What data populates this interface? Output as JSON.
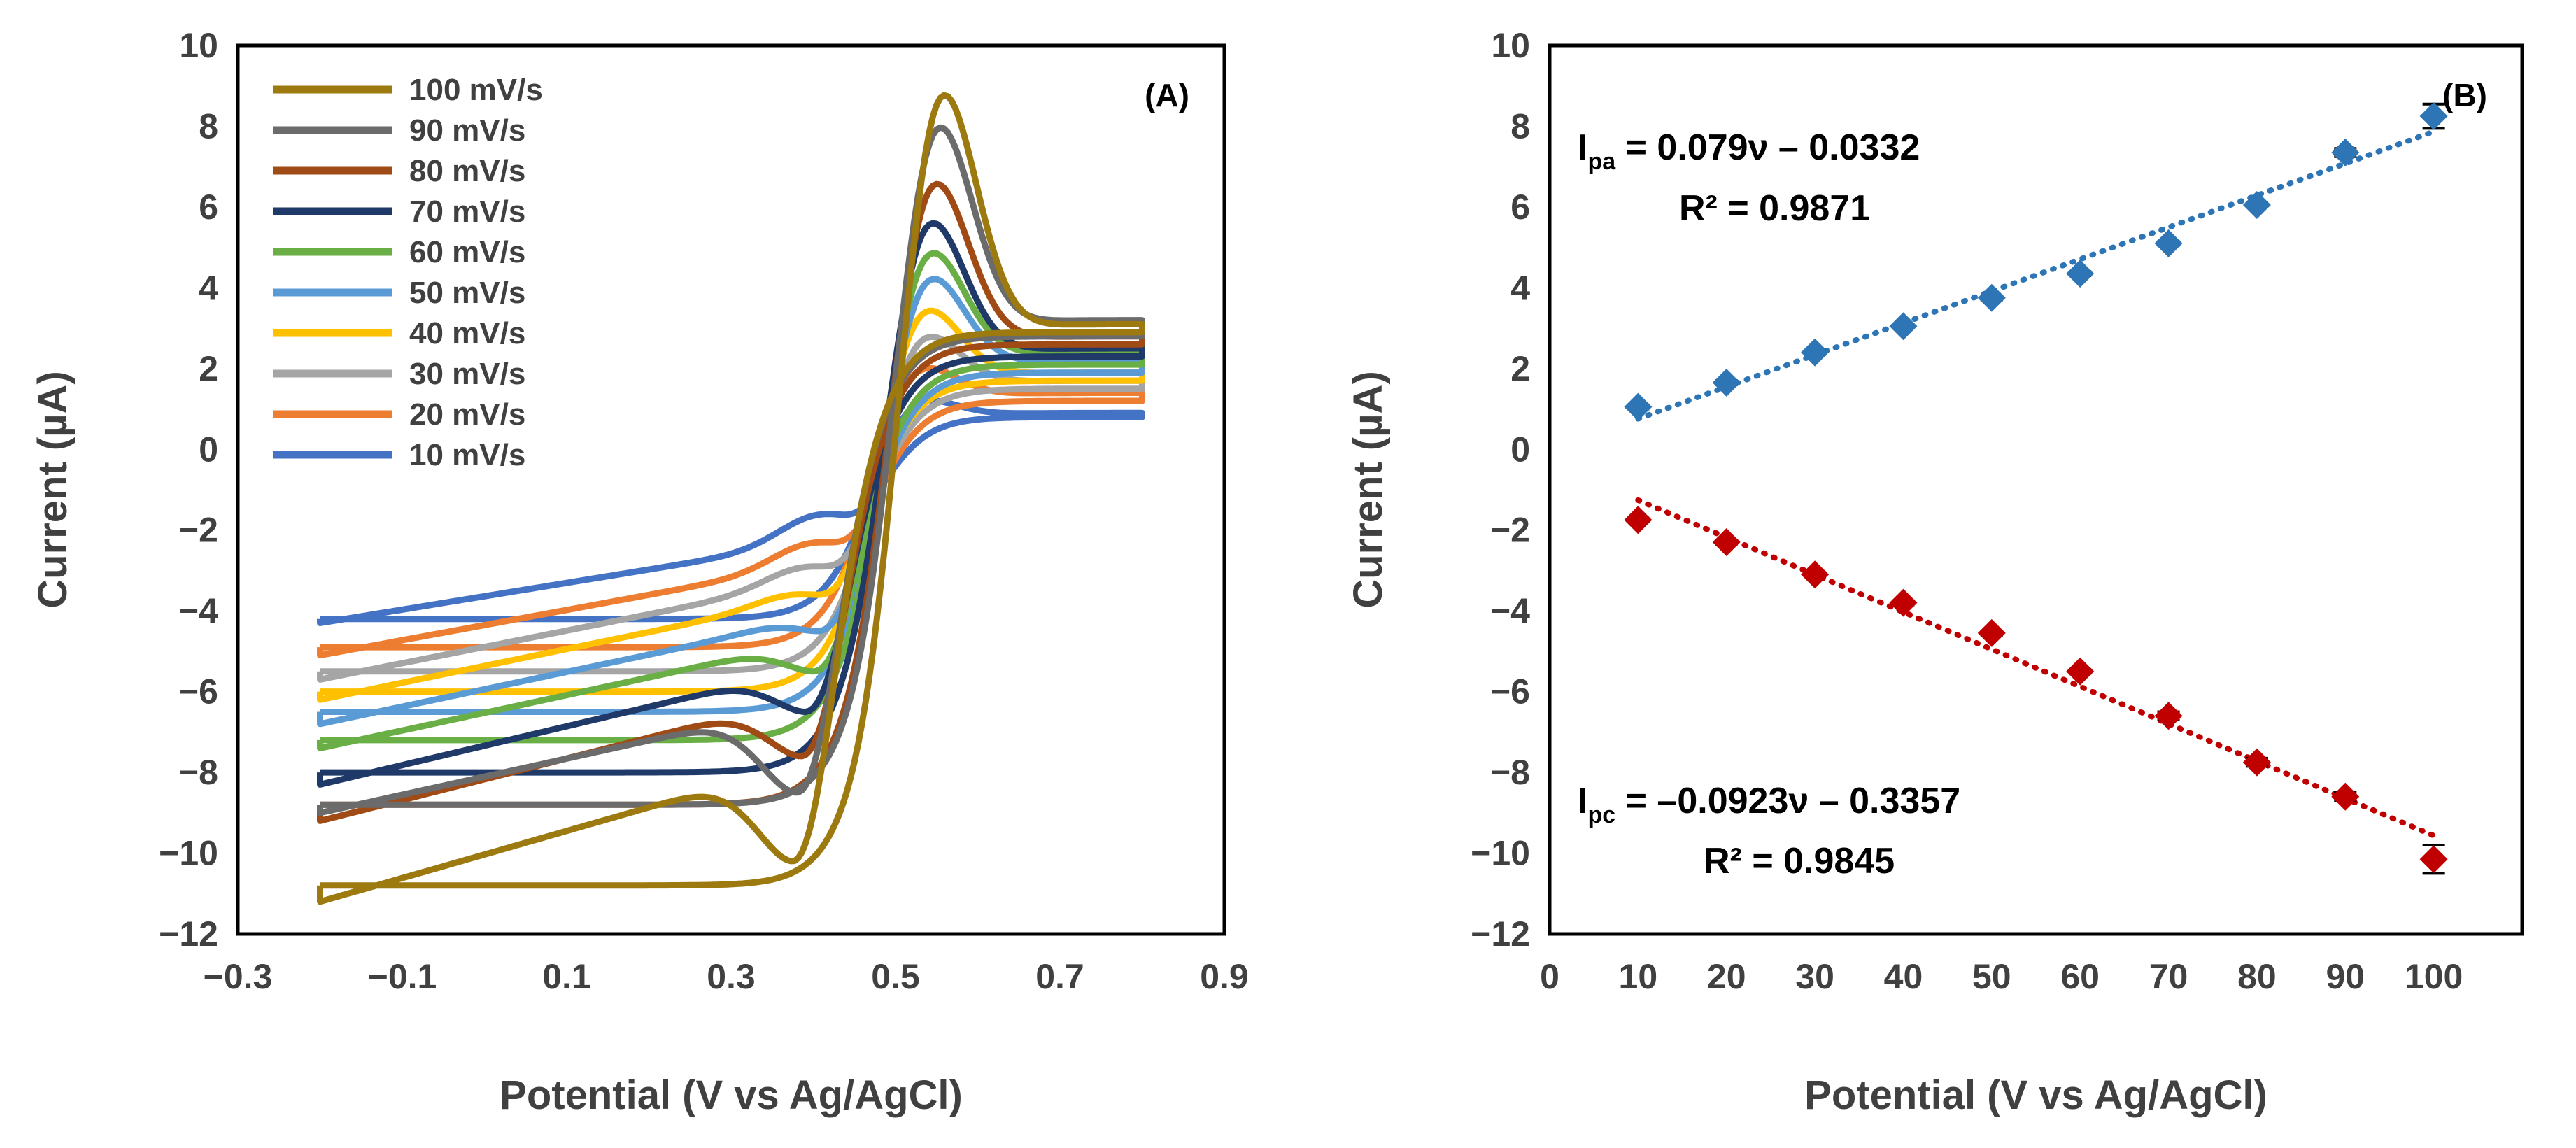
{
  "chart_data": [
    {
      "type": "line",
      "panel_label": "(A)",
      "xlabel": "Potential (V vs Ag/AgCl)",
      "ylabel": "Current (µA)",
      "xlim": [
        -0.3,
        0.9
      ],
      "ylim": [
        -12,
        10
      ],
      "x_ticks": [
        "-0.3",
        "-0.1",
        "0.1",
        "0.3",
        "0.5",
        "0.7",
        "0.9"
      ],
      "y_ticks": [
        "-12",
        "-10",
        "-8",
        "-6",
        "-4",
        "-2",
        "0",
        "2",
        "4",
        "6",
        "8",
        "10"
      ],
      "grid": false,
      "legend_position": "top-left",
      "potential_window": [
        -0.2,
        0.8
      ],
      "series": [
        {
          "name": "100 mV/s",
          "color": "#9C7A0F",
          "anodic_peak": {
            "E": 0.555,
            "I": 8.15
          },
          "cathodic_peak": {
            "E": 0.375,
            "I": -10.2
          },
          "start_forward_I": -10.8,
          "start_reverse_I": -11.2,
          "end_forward_I": 3.1,
          "end_reverse_I": 2.9
        },
        {
          "name": "90 mV/s",
          "color": "#6B6B6B",
          "anodic_peak": {
            "E": 0.55,
            "I": 7.2
          },
          "cathodic_peak": {
            "E": 0.38,
            "I": -8.5
          },
          "start_forward_I": -8.8,
          "start_reverse_I": -9.0,
          "end_forward_I": 3.2,
          "end_reverse_I": 2.8
        },
        {
          "name": "80 mV/s",
          "color": "#A04B16",
          "anodic_peak": {
            "E": 0.545,
            "I": 5.95
          },
          "cathodic_peak": {
            "E": 0.385,
            "I": -7.6
          },
          "start_forward_I": -8.8,
          "start_reverse_I": -9.2,
          "end_forward_I": 2.8,
          "end_reverse_I": 2.6
        },
        {
          "name": "70 mV/s",
          "color": "#1F3A68",
          "anodic_peak": {
            "E": 0.54,
            "I": 5.05
          },
          "cathodic_peak": {
            "E": 0.39,
            "I": -6.5
          },
          "start_forward_I": -8.0,
          "start_reverse_I": -8.3,
          "end_forward_I": 2.5,
          "end_reverse_I": 2.3
        },
        {
          "name": "60 mV/s",
          "color": "#6AAF45",
          "anodic_peak": {
            "E": 0.54,
            "I": 4.3
          },
          "cathodic_peak": {
            "E": 0.4,
            "I": -5.5
          },
          "start_forward_I": -7.2,
          "start_reverse_I": -7.4,
          "end_forward_I": 2.4,
          "end_reverse_I": 2.1
        },
        {
          "name": "50 mV/s",
          "color": "#5B9BD5",
          "anodic_peak": {
            "E": 0.54,
            "I": 3.7
          },
          "cathodic_peak": {
            "E": 0.405,
            "I": -4.5
          },
          "start_forward_I": -6.5,
          "start_reverse_I": -6.8,
          "end_forward_I": 2.2,
          "end_reverse_I": 1.9
        },
        {
          "name": "40 mV/s",
          "color": "#FFC000",
          "anodic_peak": {
            "E": 0.535,
            "I": 3.0
          },
          "cathodic_peak": {
            "E": 0.405,
            "I": -3.6
          },
          "start_forward_I": -6.0,
          "start_reverse_I": -6.2,
          "end_forward_I": 1.9,
          "end_reverse_I": 1.7
        },
        {
          "name": "30 mV/s",
          "color": "#A5A5A5",
          "anodic_peak": {
            "E": 0.535,
            "I": 2.4
          },
          "cathodic_peak": {
            "E": 0.41,
            "I": -2.9
          },
          "start_forward_I": -5.5,
          "start_reverse_I": -5.7,
          "end_forward_I": 1.7,
          "end_reverse_I": 1.5
        },
        {
          "name": "20 mV/s",
          "color": "#ED7D31",
          "anodic_peak": {
            "E": 0.53,
            "I": 1.7
          },
          "cathodic_peak": {
            "E": 0.415,
            "I": -2.3
          },
          "start_forward_I": -4.9,
          "start_reverse_I": -5.1,
          "end_forward_I": 1.4,
          "end_reverse_I": 1.2
        },
        {
          "name": "10 mV/s",
          "color": "#4472C4",
          "anodic_peak": {
            "E": 0.53,
            "I": 1.05
          },
          "cathodic_peak": {
            "E": 0.42,
            "I": -1.6
          },
          "start_forward_I": -4.2,
          "start_reverse_I": -4.3,
          "end_forward_I": 0.9,
          "end_reverse_I": 0.8
        }
      ]
    },
    {
      "type": "scatter",
      "panel_label": "(B)",
      "xlabel": "Potential (V vs Ag/AgCl)",
      "ylabel": "Current (µA)",
      "xlim": [
        0,
        110
      ],
      "ylim": [
        -12,
        10
      ],
      "x_ticks": [
        "0",
        "10",
        "20",
        "30",
        "40",
        "50",
        "60",
        "70",
        "80",
        "90",
        "100"
      ],
      "y_ticks": [
        "-12",
        "-10",
        "-8",
        "-6",
        "-4",
        "-2",
        "0",
        "2",
        "4",
        "6",
        "8",
        "10"
      ],
      "grid": false,
      "x": [
        10,
        20,
        30,
        40,
        50,
        60,
        70,
        80,
        90,
        100
      ],
      "series": [
        {
          "name": "Ipa",
          "color": "#2E75B6",
          "values": [
            1.05,
            1.65,
            2.4,
            3.05,
            3.75,
            4.35,
            5.1,
            6.05,
            7.35,
            8.25
          ],
          "errors": [
            0.05,
            0.05,
            0.05,
            0.05,
            0.05,
            0.05,
            0.05,
            0.05,
            0.1,
            0.3
          ],
          "trendline": {
            "slope": 0.079,
            "intercept": -0.0332
          }
        },
        {
          "name": "Ipc",
          "color": "#C00000",
          "values": [
            -1.75,
            -2.3,
            -3.1,
            -3.8,
            -4.55,
            -5.5,
            -6.6,
            -7.75,
            -8.6,
            -10.15
          ],
          "errors": [
            0.05,
            0.05,
            0.05,
            0.05,
            0.05,
            0.05,
            0.1,
            0.1,
            0.1,
            0.35
          ],
          "trendline": {
            "slope": -0.0923,
            "intercept": -0.3357
          }
        }
      ],
      "annotations": {
        "ipa": {
          "main": "I",
          "sub": "pa",
          "rest": " = 0.079ν – 0.0332",
          "r2": "R² = 0.9871"
        },
        "ipc": {
          "main": "I",
          "sub": "pc",
          "rest": " = –0.0923ν – 0.3357",
          "r2": "R² = 0.9845"
        }
      }
    }
  ]
}
